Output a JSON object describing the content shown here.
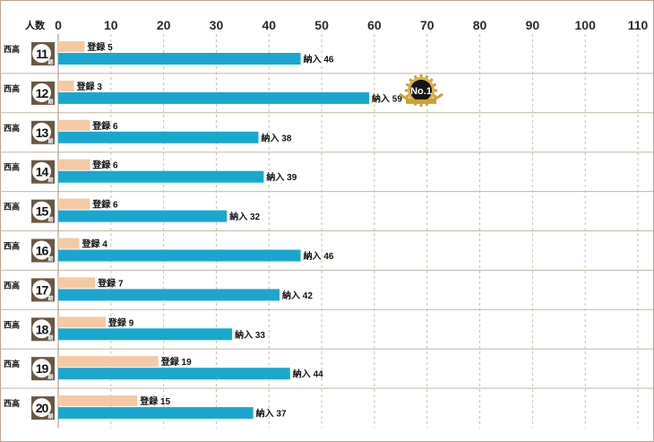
{
  "chart_data": {
    "type": "bar",
    "orientation": "horizontal",
    "axis_unit_label": "人数",
    "xlim": [
      0,
      110
    ],
    "x_ticks": [
      0,
      10,
      20,
      30,
      40,
      50,
      60,
      70,
      80,
      90,
      100,
      110
    ],
    "grid": "vertical dashed",
    "row_prefix": "西高",
    "row_suffix": "期",
    "categories": [
      "11",
      "12",
      "13",
      "14",
      "15",
      "16",
      "17",
      "18",
      "19",
      "20"
    ],
    "series": [
      {
        "name": "登録",
        "color": "#f5c9a4",
        "values": [
          5,
          3,
          6,
          6,
          6,
          4,
          7,
          9,
          19,
          15
        ]
      },
      {
        "name": "納入",
        "color": "#1aa7cf",
        "values": [
          46,
          59,
          38,
          39,
          32,
          46,
          42,
          33,
          44,
          37
        ]
      }
    ],
    "badge": {
      "text": "No.1",
      "category": "12",
      "icon": "gold-no1-medal-icon"
    }
  }
}
